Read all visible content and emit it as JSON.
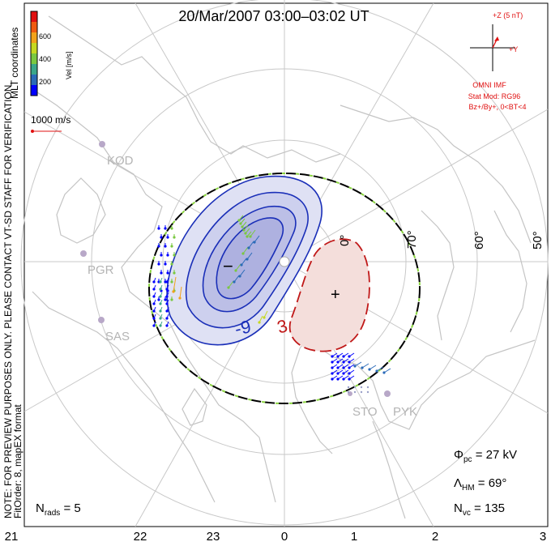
{
  "title": "20/Mar/2007 03:00–03:02 UT",
  "coord_label": "MLT coordinates",
  "colorbar": {
    "label": "Vel [m/s]",
    "ticks": [
      "600",
      "400",
      "200"
    ],
    "colors": [
      "#0000ff",
      "#2a6ab8",
      "#3aa68a",
      "#7ac840",
      "#c6d820",
      "#f2a21a",
      "#f05a10",
      "#e01010"
    ]
  },
  "scale_vector_label": "1000 m/s",
  "imf": {
    "axis_top_label": "+Z (5 nT)",
    "axis_right_label": "+Y",
    "source": "OMNI IMF",
    "stat_model": "Stat Mod: RG96",
    "condition": "Bz+/By+, 0<BT<4",
    "color": "#e01010"
  },
  "stations": [
    "KOD",
    "PGR",
    "SAS",
    "STO",
    "PYK"
  ],
  "latitude_labels": [
    "70°",
    "60°",
    "50°"
  ],
  "mlt_labels": [
    "21",
    "22",
    "23",
    "0",
    "1",
    "2",
    "3"
  ],
  "contours": {
    "negative_cell_label": "-9",
    "negative_marker": "−",
    "positive_cell_label": "3",
    "positive_marker": "+",
    "negative_color": "#1a2fb8",
    "positive_color": "#c01818"
  },
  "side_note": "NOTE: FOR PREVIEW PURPOSES ONLY.  PLEASE CONTACT VT-SD STAFF FOR VERIFICATION.",
  "side_note2": "FitOrder: 8, mapEX format",
  "stats": {
    "phi_pc_label": "Φ",
    "phi_pc_sub": "pc",
    "phi_pc_value": " = 27 kV",
    "lambda_label": "Λ",
    "lambda_sub": "HM",
    "lambda_value": " = 69°",
    "nvc_label": "N",
    "nvc_sub": "vc",
    "nvc_value": " = 135",
    "nrads_label": "N",
    "nrads_sub": "rads",
    "nrads_value": " = 5"
  },
  "colors": {
    "coastline": "#c4c4c4",
    "grid": "#c8c8c8",
    "station": "#b8a8c8",
    "station_label": "#b4b4b4"
  }
}
